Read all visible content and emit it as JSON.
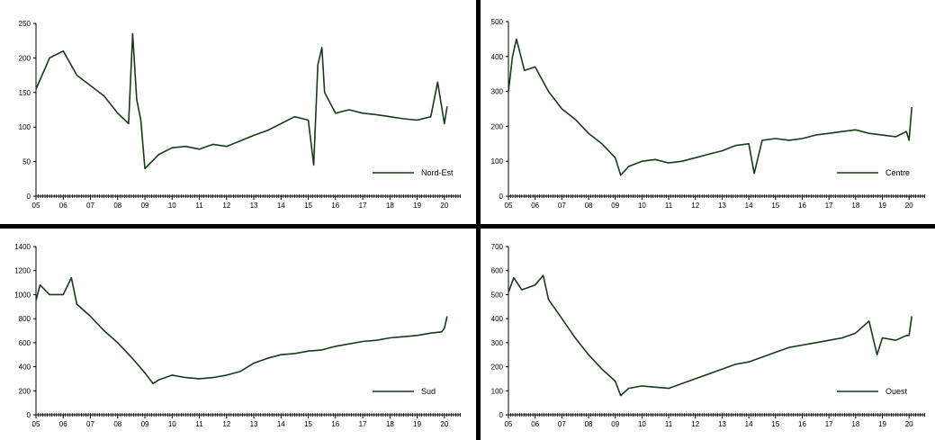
{
  "colors": {
    "series": "#173b17",
    "axis": "#000000",
    "divider": "#000000"
  },
  "chart_data": [
    {
      "type": "line",
      "panel": "top-left",
      "legend": "Nord-Est",
      "legend_position": "bottom-right",
      "grid": false,
      "ylim": [
        0,
        250
      ],
      "yticks": [
        0,
        50,
        100,
        150,
        200,
        250
      ],
      "xlim": [
        2005,
        2020.6
      ],
      "xticks": [
        "05",
        "06",
        "07",
        "08",
        "09",
        "10",
        "11",
        "12",
        "13",
        "14",
        "15",
        "16",
        "17",
        "18",
        "19",
        "20"
      ],
      "series": [
        {
          "x": [
            2005.0,
            2005.5,
            2006.0,
            2006.5,
            2007.0,
            2007.5,
            2008.0,
            2008.4,
            2008.55,
            2008.7,
            2008.85,
            2009.0,
            2009.5,
            2010.0,
            2010.5,
            2011.0,
            2011.5,
            2012.0,
            2012.5,
            2013.0,
            2013.5,
            2014.0,
            2014.5,
            2015.0,
            2015.2,
            2015.35,
            2015.5,
            2015.6,
            2016.0,
            2016.5,
            2017.0,
            2017.5,
            2018.0,
            2018.5,
            2019.0,
            2019.5,
            2019.75,
            2020.0,
            2020.1
          ],
          "y": [
            155,
            200,
            210,
            175,
            160,
            145,
            120,
            105,
            235,
            140,
            110,
            40,
            60,
            70,
            72,
            68,
            75,
            72,
            80,
            88,
            95,
            105,
            115,
            110,
            45,
            190,
            215,
            150,
            120,
            125,
            120,
            118,
            115,
            112,
            110,
            115,
            165,
            105,
            130
          ]
        }
      ]
    },
    {
      "type": "line",
      "panel": "top-right",
      "legend": "Centre",
      "legend_position": "bottom-right",
      "grid": false,
      "ylim": [
        0,
        500
      ],
      "yticks": [
        0,
        100,
        200,
        300,
        400,
        500
      ],
      "xlim": [
        2005,
        2020.6
      ],
      "xticks": [
        "05",
        "06",
        "07",
        "08",
        "09",
        "10",
        "11",
        "12",
        "13",
        "14",
        "15",
        "16",
        "17",
        "18",
        "19",
        "20"
      ],
      "series": [
        {
          "x": [
            2005.0,
            2005.15,
            2005.3,
            2005.6,
            2006.0,
            2006.5,
            2007.0,
            2007.5,
            2008.0,
            2008.5,
            2009.0,
            2009.2,
            2009.5,
            2010.0,
            2010.5,
            2011.0,
            2011.5,
            2012.0,
            2012.5,
            2013.0,
            2013.5,
            2014.0,
            2014.2,
            2014.5,
            2015.0,
            2015.5,
            2016.0,
            2016.5,
            2017.0,
            2017.5,
            2018.0,
            2018.5,
            2019.0,
            2019.5,
            2019.9,
            2020.0,
            2020.1
          ],
          "y": [
            300,
            400,
            450,
            360,
            370,
            300,
            250,
            220,
            180,
            150,
            110,
            60,
            85,
            100,
            105,
            95,
            100,
            110,
            120,
            130,
            145,
            150,
            65,
            160,
            165,
            160,
            165,
            175,
            180,
            185,
            190,
            180,
            175,
            170,
            185,
            160,
            255
          ]
        }
      ]
    },
    {
      "type": "line",
      "panel": "bottom-left",
      "legend": "Sud",
      "legend_position": "bottom-right",
      "grid": false,
      "ylim": [
        0,
        1400
      ],
      "yticks": [
        0,
        200,
        400,
        600,
        800,
        1000,
        1200,
        1400
      ],
      "xlim": [
        2005,
        2020.6
      ],
      "xticks": [
        "05",
        "06",
        "07",
        "08",
        "09",
        "10",
        "11",
        "12",
        "13",
        "14",
        "15",
        "16",
        "17",
        "18",
        "19",
        "20"
      ],
      "series": [
        {
          "x": [
            2005.0,
            2005.15,
            2005.5,
            2006.0,
            2006.3,
            2006.5,
            2007.0,
            2007.5,
            2008.0,
            2008.5,
            2009.0,
            2009.3,
            2009.5,
            2010.0,
            2010.5,
            2011.0,
            2011.5,
            2012.0,
            2012.5,
            2013.0,
            2013.5,
            2014.0,
            2014.5,
            2015.0,
            2015.5,
            2016.0,
            2016.5,
            2017.0,
            2017.5,
            2018.0,
            2018.5,
            2019.0,
            2019.5,
            2019.9,
            2020.0,
            2020.1
          ],
          "y": [
            950,
            1080,
            1000,
            1000,
            1140,
            920,
            820,
            700,
            600,
            480,
            350,
            260,
            290,
            330,
            310,
            300,
            310,
            330,
            360,
            430,
            470,
            500,
            510,
            530,
            540,
            570,
            590,
            610,
            620,
            640,
            650,
            660,
            680,
            690,
            720,
            820
          ]
        }
      ]
    },
    {
      "type": "line",
      "panel": "bottom-right",
      "legend": "Ouest",
      "legend_position": "bottom-right",
      "grid": false,
      "ylim": [
        0,
        700
      ],
      "yticks": [
        0,
        100,
        200,
        300,
        400,
        500,
        600,
        700
      ],
      "xlim": [
        2005,
        2020.6
      ],
      "xticks": [
        "05",
        "06",
        "07",
        "08",
        "09",
        "10",
        "11",
        "12",
        "13",
        "14",
        "15",
        "16",
        "17",
        "18",
        "19",
        "20"
      ],
      "series": [
        {
          "x": [
            2005.0,
            2005.2,
            2005.5,
            2006.0,
            2006.3,
            2006.5,
            2007.0,
            2007.5,
            2008.0,
            2008.5,
            2009.0,
            2009.2,
            2009.5,
            2010.0,
            2010.5,
            2011.0,
            2011.5,
            2012.0,
            2012.5,
            2013.0,
            2013.5,
            2014.0,
            2014.5,
            2015.0,
            2015.5,
            2016.0,
            2016.5,
            2017.0,
            2017.5,
            2018.0,
            2018.5,
            2018.8,
            2019.0,
            2019.5,
            2019.9,
            2020.0,
            2020.1
          ],
          "y": [
            510,
            570,
            520,
            540,
            580,
            480,
            400,
            320,
            250,
            190,
            140,
            80,
            110,
            120,
            115,
            110,
            130,
            150,
            170,
            190,
            210,
            220,
            240,
            260,
            280,
            290,
            300,
            310,
            320,
            340,
            390,
            250,
            320,
            310,
            330,
            330,
            410
          ]
        }
      ]
    }
  ]
}
